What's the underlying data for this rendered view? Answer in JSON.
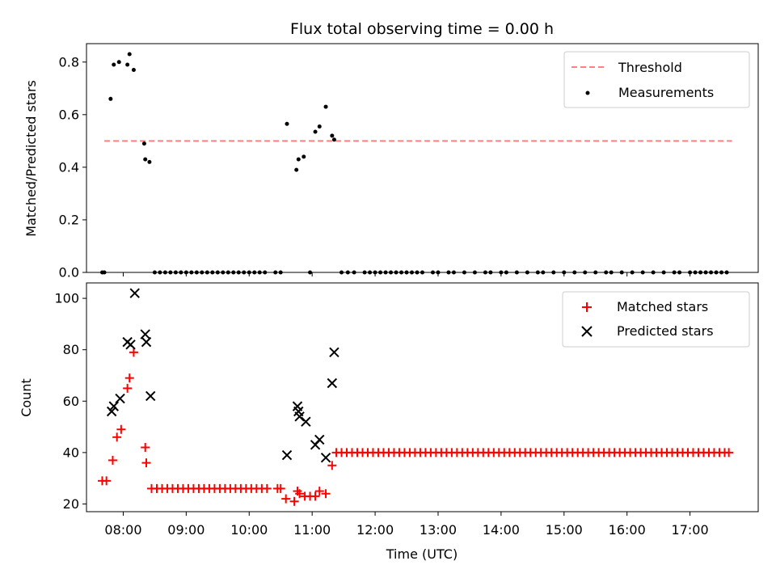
{
  "chart_data": [
    {
      "type": "scatter",
      "title": "Flux total observing time = 0.00 h",
      "xlabel": "",
      "ylabel": "Matched/Predicted stars",
      "xlim": [
        "07:25",
        "18:05"
      ],
      "ylim": [
        0,
        0.87
      ],
      "yticks": [
        "0.0",
        "0.2",
        "0.4",
        "0.6",
        "0.8"
      ],
      "legend": {
        "position": "top-right",
        "entries": [
          "Threshold",
          "Measurements"
        ]
      },
      "threshold": {
        "name": "Threshold",
        "value": 0.5,
        "x_start": "07:42",
        "x_end": "17:40",
        "color": "#ff8080"
      },
      "series": [
        {
          "name": "Measurements",
          "color": "#000000",
          "points": [
            [
              "07:40",
              0
            ],
            [
              "07:42",
              0
            ],
            [
              "07:48",
              0.66
            ],
            [
              "07:51",
              0.79
            ],
            [
              "07:56",
              0.8
            ],
            [
              "08:04",
              0.79
            ],
            [
              "08:06",
              0.83
            ],
            [
              "08:10",
              0.77
            ],
            [
              "08:20",
              0.49
            ],
            [
              "08:21",
              0.43
            ],
            [
              "08:25",
              0.42
            ],
            [
              "08:30",
              0
            ],
            [
              "08:35",
              0
            ],
            [
              "08:40",
              0
            ],
            [
              "08:45",
              0
            ],
            [
              "08:50",
              0
            ],
            [
              "08:55",
              0
            ],
            [
              "09:00",
              0
            ],
            [
              "09:05",
              0
            ],
            [
              "09:10",
              0
            ],
            [
              "09:15",
              0
            ],
            [
              "09:20",
              0
            ],
            [
              "09:25",
              0
            ],
            [
              "09:30",
              0
            ],
            [
              "09:35",
              0
            ],
            [
              "09:40",
              0
            ],
            [
              "09:45",
              0
            ],
            [
              "09:50",
              0
            ],
            [
              "09:55",
              0
            ],
            [
              "10:00",
              0
            ],
            [
              "10:05",
              0
            ],
            [
              "10:10",
              0
            ],
            [
              "10:15",
              0
            ],
            [
              "10:25",
              0
            ],
            [
              "10:30",
              0
            ],
            [
              "10:36",
              0.565
            ],
            [
              "10:45",
              0.39
            ],
            [
              "10:47",
              0.43
            ],
            [
              "10:52",
              0.44
            ],
            [
              "10:58",
              0
            ],
            [
              "11:03",
              0.535
            ],
            [
              "11:07",
              0.555
            ],
            [
              "11:13",
              0.63
            ],
            [
              "11:19",
              0.52
            ],
            [
              "11:21",
              0.505
            ],
            [
              "11:28",
              0
            ],
            [
              "11:34",
              0
            ],
            [
              "11:40",
              0
            ],
            [
              "11:50",
              0
            ],
            [
              "11:55",
              0
            ],
            [
              "12:00",
              0
            ],
            [
              "12:05",
              0
            ],
            [
              "12:10",
              0
            ],
            [
              "12:15",
              0
            ],
            [
              "12:20",
              0
            ],
            [
              "12:25",
              0
            ],
            [
              "12:30",
              0
            ],
            [
              "12:35",
              0
            ],
            [
              "12:40",
              0
            ],
            [
              "12:45",
              0
            ],
            [
              "12:55",
              0
            ],
            [
              "13:00",
              0
            ],
            [
              "13:10",
              0
            ],
            [
              "13:15",
              0
            ],
            [
              "13:25",
              0
            ],
            [
              "13:35",
              0
            ],
            [
              "13:45",
              0
            ],
            [
              "13:50",
              0
            ],
            [
              "14:00",
              0
            ],
            [
              "14:05",
              0
            ],
            [
              "14:15",
              0
            ],
            [
              "14:25",
              0
            ],
            [
              "14:35",
              0
            ],
            [
              "14:40",
              0
            ],
            [
              "14:50",
              0
            ],
            [
              "15:00",
              0
            ],
            [
              "15:10",
              0
            ],
            [
              "15:20",
              0
            ],
            [
              "15:30",
              0
            ],
            [
              "15:40",
              0
            ],
            [
              "15:45",
              0
            ],
            [
              "15:55",
              0
            ],
            [
              "16:05",
              0
            ],
            [
              "16:15",
              0
            ],
            [
              "16:25",
              0
            ],
            [
              "16:35",
              0
            ],
            [
              "16:45",
              0
            ],
            [
              "16:50",
              0
            ],
            [
              "17:00",
              0
            ],
            [
              "17:05",
              0
            ],
            [
              "17:10",
              0
            ],
            [
              "17:15",
              0
            ],
            [
              "17:20",
              0
            ],
            [
              "17:25",
              0
            ],
            [
              "17:30",
              0
            ],
            [
              "17:35",
              0
            ]
          ]
        }
      ]
    },
    {
      "type": "scatter",
      "title": "",
      "xlabel": "Time (UTC)",
      "ylabel": "Count",
      "xlim": [
        "07:25",
        "18:05"
      ],
      "ylim": [
        17,
        106
      ],
      "xticks": [
        "08:00",
        "09:00",
        "10:00",
        "11:00",
        "12:00",
        "13:00",
        "14:00",
        "15:00",
        "16:00",
        "17:00"
      ],
      "yticks": [
        "20",
        "40",
        "60",
        "80",
        "100"
      ],
      "legend": {
        "position": "top-right",
        "entries": [
          "Matched stars",
          "Predicted stars"
        ]
      },
      "series": [
        {
          "name": "Matched stars",
          "marker": "plus",
          "color": "#ff0000",
          "points": [
            [
              "07:40",
              29
            ],
            [
              "07:44",
              29
            ],
            [
              "07:50",
              37
            ],
            [
              "07:54",
              46
            ],
            [
              "07:58",
              49
            ],
            [
              "08:04",
              65
            ],
            [
              "08:06",
              69
            ],
            [
              "08:10",
              79
            ],
            [
              "08:21",
              42
            ],
            [
              "08:22",
              36
            ],
            [
              "08:27",
              26
            ],
            [
              "08:32",
              26
            ],
            [
              "08:37",
              26
            ],
            [
              "08:42",
              26
            ],
            [
              "08:47",
              26
            ],
            [
              "08:52",
              26
            ],
            [
              "08:57",
              26
            ],
            [
              "09:02",
              26
            ],
            [
              "09:07",
              26
            ],
            [
              "09:12",
              26
            ],
            [
              "09:17",
              26
            ],
            [
              "09:22",
              26
            ],
            [
              "09:27",
              26
            ],
            [
              "09:32",
              26
            ],
            [
              "09:37",
              26
            ],
            [
              "09:42",
              26
            ],
            [
              "09:47",
              26
            ],
            [
              "09:52",
              26
            ],
            [
              "09:57",
              26
            ],
            [
              "10:02",
              26
            ],
            [
              "10:07",
              26
            ],
            [
              "10:12",
              26
            ],
            [
              "10:17",
              26
            ],
            [
              "10:27",
              26
            ],
            [
              "10:30",
              26
            ],
            [
              "10:35",
              22
            ],
            [
              "10:43",
              21
            ],
            [
              "10:46",
              25
            ],
            [
              "10:48",
              24
            ],
            [
              "10:53",
              23
            ],
            [
              "10:58",
              23
            ],
            [
              "11:03",
              23
            ],
            [
              "11:07",
              25
            ],
            [
              "11:13",
              24
            ],
            [
              "11:19",
              35
            ],
            [
              "11:23",
              40
            ],
            [
              "11:28",
              40
            ],
            [
              "11:33",
              40
            ],
            [
              "11:38",
              40
            ],
            [
              "11:43",
              40
            ],
            [
              "11:48",
              40
            ],
            [
              "11:53",
              40
            ],
            [
              "11:58",
              40
            ],
            [
              "12:03",
              40
            ],
            [
              "12:08",
              40
            ],
            [
              "12:13",
              40
            ],
            [
              "12:18",
              40
            ],
            [
              "12:23",
              40
            ],
            [
              "12:28",
              40
            ],
            [
              "12:33",
              40
            ],
            [
              "12:38",
              40
            ],
            [
              "12:43",
              40
            ],
            [
              "12:48",
              40
            ],
            [
              "12:53",
              40
            ],
            [
              "12:58",
              40
            ],
            [
              "13:03",
              40
            ],
            [
              "13:08",
              40
            ],
            [
              "13:13",
              40
            ],
            [
              "13:18",
              40
            ],
            [
              "13:23",
              40
            ],
            [
              "13:28",
              40
            ],
            [
              "13:33",
              40
            ],
            [
              "13:38",
              40
            ],
            [
              "13:43",
              40
            ],
            [
              "13:48",
              40
            ],
            [
              "13:53",
              40
            ],
            [
              "13:58",
              40
            ],
            [
              "14:03",
              40
            ],
            [
              "14:08",
              40
            ],
            [
              "14:13",
              40
            ],
            [
              "14:18",
              40
            ],
            [
              "14:23",
              40
            ],
            [
              "14:28",
              40
            ],
            [
              "14:33",
              40
            ],
            [
              "14:38",
              40
            ],
            [
              "14:43",
              40
            ],
            [
              "14:48",
              40
            ],
            [
              "14:53",
              40
            ],
            [
              "14:58",
              40
            ],
            [
              "15:03",
              40
            ],
            [
              "15:08",
              40
            ],
            [
              "15:13",
              40
            ],
            [
              "15:18",
              40
            ],
            [
              "15:23",
              40
            ],
            [
              "15:28",
              40
            ],
            [
              "15:33",
              40
            ],
            [
              "15:38",
              40
            ],
            [
              "15:43",
              40
            ],
            [
              "15:48",
              40
            ],
            [
              "15:53",
              40
            ],
            [
              "15:58",
              40
            ],
            [
              "16:03",
              40
            ],
            [
              "16:08",
              40
            ],
            [
              "16:13",
              40
            ],
            [
              "16:18",
              40
            ],
            [
              "16:23",
              40
            ],
            [
              "16:28",
              40
            ],
            [
              "16:33",
              40
            ],
            [
              "16:38",
              40
            ],
            [
              "16:43",
              40
            ],
            [
              "16:48",
              40
            ],
            [
              "16:53",
              40
            ],
            [
              "16:58",
              40
            ],
            [
              "17:03",
              40
            ],
            [
              "17:08",
              40
            ],
            [
              "17:13",
              40
            ],
            [
              "17:18",
              40
            ],
            [
              "17:23",
              40
            ],
            [
              "17:28",
              40
            ],
            [
              "17:33",
              40
            ],
            [
              "17:37",
              40
            ]
          ]
        },
        {
          "name": "Predicted stars",
          "marker": "x",
          "color": "#000000",
          "points": [
            [
              "07:49",
              56
            ],
            [
              "07:51",
              58
            ],
            [
              "07:57",
              61
            ],
            [
              "08:04",
              83
            ],
            [
              "08:07",
              82
            ],
            [
              "08:11",
              102
            ],
            [
              "08:21",
              86
            ],
            [
              "08:22",
              83
            ],
            [
              "08:26",
              62
            ],
            [
              "10:36",
              39
            ],
            [
              "10:46",
              58
            ],
            [
              "10:47",
              56
            ],
            [
              "10:48",
              54
            ],
            [
              "10:54",
              52
            ],
            [
              "11:03",
              43
            ],
            [
              "11:07",
              45
            ],
            [
              "11:13",
              38
            ],
            [
              "11:19",
              67
            ],
            [
              "11:21",
              79
            ]
          ]
        }
      ]
    }
  ]
}
